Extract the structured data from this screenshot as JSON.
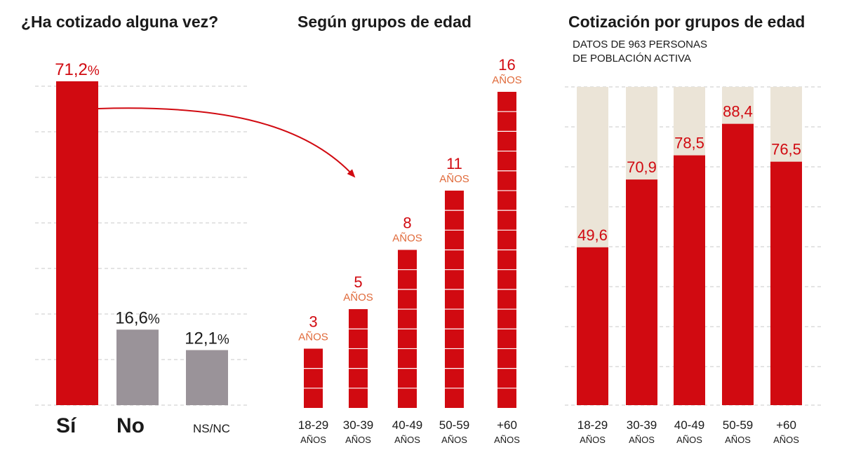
{
  "colors": {
    "red": "#d10a11",
    "gray": "#9a9399",
    "beige": "#ebe4d7",
    "orange_label": "#e06a3a",
    "grid": "#c8c8c8",
    "text": "#1a1a1a"
  },
  "chart_data": [
    {
      "type": "bar",
      "title": "¿Ha cotizado alguna vez?",
      "categories": [
        "Sí",
        "No",
        "NS/NC"
      ],
      "values": [
        71.2,
        16.6,
        12.1
      ],
      "value_labels": [
        "71,2",
        "16,6",
        "12,1"
      ],
      "unit": "%",
      "ylim": [
        0,
        71.2
      ]
    },
    {
      "type": "bar",
      "title": "Según grupos de edad",
      "categories": [
        {
          "range": "18-29",
          "unit": "AÑOS"
        },
        {
          "range": "30-39",
          "unit": "AÑOS"
        },
        {
          "range": "40-49",
          "unit": "AÑOS"
        },
        {
          "range": "50-59",
          "unit": "AÑOS"
        },
        {
          "range": "+60",
          "unit": "AÑOS"
        }
      ],
      "values": [
        3,
        5,
        8,
        11,
        16
      ],
      "value_unit": "AÑOS",
      "ylim": [
        0,
        16
      ]
    },
    {
      "type": "bar",
      "stacked": true,
      "title": "Cotización por grupos de edad",
      "subtitle_lines": [
        "DATOS DE 963 PERSONAS",
        "DE POBLACIÓN ACTIVA"
      ],
      "categories": [
        {
          "range": "18-29",
          "unit": "AÑOS"
        },
        {
          "range": "30-39",
          "unit": "AÑOS"
        },
        {
          "range": "40-49",
          "unit": "AÑOS"
        },
        {
          "range": "50-59",
          "unit": "AÑOS"
        },
        {
          "range": "+60",
          "unit": "AÑOS"
        }
      ],
      "values": [
        49.6,
        70.9,
        78.5,
        88.4,
        76.5
      ],
      "value_labels": [
        "49,6",
        "70,9",
        "78,5",
        "88,4",
        "76,5"
      ],
      "ylim": [
        0,
        100
      ]
    }
  ]
}
